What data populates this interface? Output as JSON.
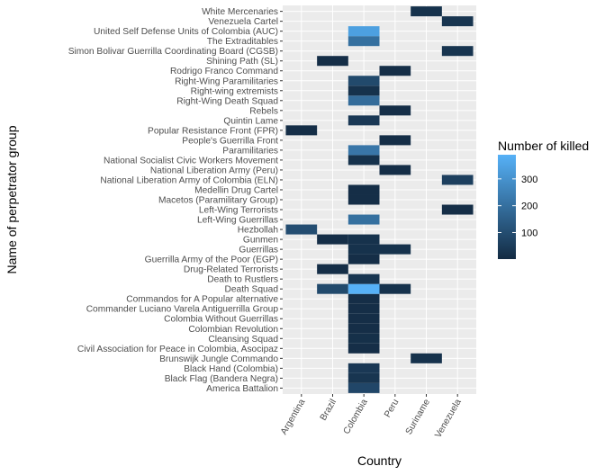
{
  "chart_data": {
    "type": "heatmap",
    "title": "",
    "xlabel": "Country",
    "ylabel": "Name of perpetrator group",
    "x_categories": [
      "Argentina",
      "Brazil",
      "Colombia",
      "Peru",
      "Suriname",
      "Venezuela"
    ],
    "y_categories": [
      "America Battalion",
      "Black Flag (Bandera Negra)",
      "Black Hand (Colombia)",
      "Brunswijk Jungle Commando",
      "Civil Association for Peace in Colombia, Asocipaz",
      "Cleansing Squad",
      "Colombian Revolution",
      "Colombia Without Guerrillas",
      "Commander Luciano Varela Antiguerrilla Group",
      "Commandos for A Popular alternative",
      "Death Squad",
      "Death to Rustlers",
      "Drug-Related Terrorists",
      "Guerrilla Army of the Poor (EGP)",
      "Guerrillas",
      "Gunmen",
      "Hezbollah",
      "Left-Wing Guerrillas",
      "Left-Wing Terrorists",
      "Macetos (Paramilitary Group)",
      "Medellin Drug Cartel",
      "National Liberation Army of Colombia (ELN)",
      "National Liberation Army (Peru)",
      "National Socialist Civic Workers Movement",
      "Paramilitaries",
      "People's Guerrilla Front",
      "Popular Resistance Front (FPR)",
      "Quintin Lame",
      "Rebels",
      "Right-Wing Death Squad",
      "Right-wing extremists",
      "Right-Wing Paramilitaries",
      "Rodrigo Franco Command",
      "Shining Path (SL)",
      "Simon Bolivar Guerrilla Coordinating Board (CGSB)",
      "The Extraditables",
      "United Self Defense Units of Colombia (AUC)",
      "Venezuela Cartel",
      "White Mercenaries"
    ],
    "cells": [
      {
        "x": "Colombia",
        "y": "America Battalion",
        "value": 80
      },
      {
        "x": "Colombia",
        "y": "Black Flag (Bandera Negra)",
        "value": 30
      },
      {
        "x": "Colombia",
        "y": "Black Hand (Colombia)",
        "value": 40
      },
      {
        "x": "Suriname",
        "y": "Brunswijk Jungle Commando",
        "value": 20
      },
      {
        "x": "Colombia",
        "y": "Civil Association for Peace in Colombia, Asocipaz",
        "value": 10
      },
      {
        "x": "Colombia",
        "y": "Cleansing Squad",
        "value": 15
      },
      {
        "x": "Colombia",
        "y": "Colombian Revolution",
        "value": 10
      },
      {
        "x": "Colombia",
        "y": "Colombia Without Guerrillas",
        "value": 10
      },
      {
        "x": "Colombia",
        "y": "Commander Luciano Varela Antiguerrilla Group",
        "value": 10
      },
      {
        "x": "Colombia",
        "y": "Commandos for A Popular alternative",
        "value": 10
      },
      {
        "x": "Brazil",
        "y": "Death Squad",
        "value": 90
      },
      {
        "x": "Colombia",
        "y": "Death Squad",
        "value": 390
      },
      {
        "x": "Peru",
        "y": "Death Squad",
        "value": 20
      },
      {
        "x": "Colombia",
        "y": "Death to Rustlers",
        "value": 30
      },
      {
        "x": "Brazil",
        "y": "Drug-Related Terrorists",
        "value": 10
      },
      {
        "x": "Colombia",
        "y": "Guerrilla Army of the Poor (EGP)",
        "value": 10
      },
      {
        "x": "Colombia",
        "y": "Guerrillas",
        "value": 20
      },
      {
        "x": "Peru",
        "y": "Guerrillas",
        "value": 20
      },
      {
        "x": "Brazil",
        "y": "Gunmen",
        "value": 10
      },
      {
        "x": "Colombia",
        "y": "Gunmen",
        "value": 20
      },
      {
        "x": "Argentina",
        "y": "Hezbollah",
        "value": 100
      },
      {
        "x": "Colombia",
        "y": "Left-Wing Guerrillas",
        "value": 200
      },
      {
        "x": "Venezuela",
        "y": "Left-Wing Terrorists",
        "value": 10
      },
      {
        "x": "Colombia",
        "y": "Macetos (Paramilitary Group)",
        "value": 10
      },
      {
        "x": "Colombia",
        "y": "Medellin Drug Cartel",
        "value": 10
      },
      {
        "x": "Venezuela",
        "y": "National Liberation Army of Colombia (ELN)",
        "value": 60
      },
      {
        "x": "Peru",
        "y": "National Liberation Army (Peru)",
        "value": 10
      },
      {
        "x": "Colombia",
        "y": "National Socialist Civic Workers Movement",
        "value": 20
      },
      {
        "x": "Colombia",
        "y": "Paramilitaries",
        "value": 220
      },
      {
        "x": "Peru",
        "y": "People's Guerrilla Front",
        "value": 10
      },
      {
        "x": "Argentina",
        "y": "Popular Resistance Front (FPR)",
        "value": 10
      },
      {
        "x": "Colombia",
        "y": "Quintin Lame",
        "value": 40
      },
      {
        "x": "Peru",
        "y": "Rebels",
        "value": 10
      },
      {
        "x": "Colombia",
        "y": "Right-Wing Death Squad",
        "value": 190
      },
      {
        "x": "Colombia",
        "y": "Right-wing extremists",
        "value": 20
      },
      {
        "x": "Colombia",
        "y": "Right-Wing Paramilitaries",
        "value": 90
      },
      {
        "x": "Peru",
        "y": "Rodrigo Franco Command",
        "value": 10
      },
      {
        "x": "Brazil",
        "y": "Shining Path (SL)",
        "value": 10
      },
      {
        "x": "Venezuela",
        "y": "Simon Bolivar Guerrilla Coordinating Board (CGSB)",
        "value": 30
      },
      {
        "x": "Colombia",
        "y": "The Extraditables",
        "value": 200
      },
      {
        "x": "Colombia",
        "y": "United Self Defense Units of Colombia (AUC)",
        "value": 340
      },
      {
        "x": "Venezuela",
        "y": "Venezuela Cartel",
        "value": 30
      },
      {
        "x": "Suriname",
        "y": "White Mercenaries",
        "value": 20
      }
    ],
    "colorbar": {
      "title": "Number of killed",
      "range": [
        1,
        390
      ],
      "ticks": [
        100,
        200,
        300
      ],
      "low_color": "#132B43",
      "high_color": "#56B1F7"
    },
    "grid": true,
    "panel_background": "#EBEBEB",
    "legend_position": "right"
  }
}
